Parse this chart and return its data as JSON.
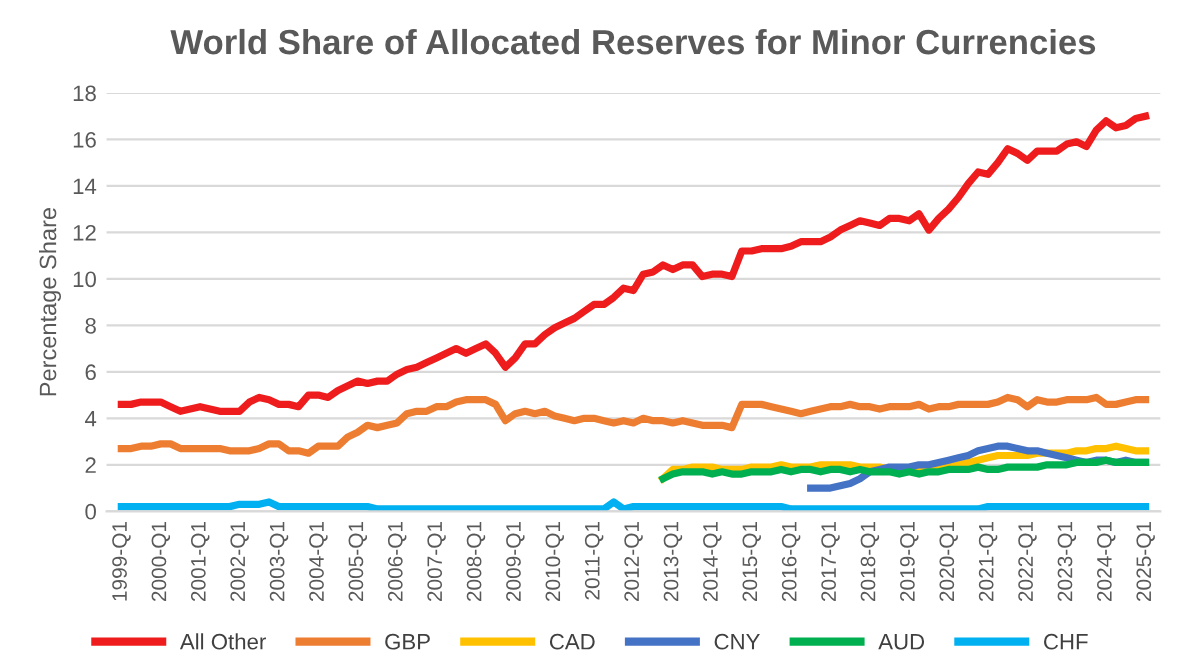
{
  "chart_data": {
    "type": "line",
    "title": "World Share of Allocated Reserves for Minor Currencies",
    "ylabel": "Percentage Share",
    "categories": [
      "1999-Q1",
      null,
      null,
      null,
      "2000-Q1",
      null,
      null,
      null,
      "2001-Q1",
      null,
      null,
      null,
      "2002-Q1",
      null,
      null,
      null,
      "2003-Q1",
      null,
      null,
      null,
      "2004-Q1",
      null,
      null,
      null,
      "2005-Q1",
      null,
      null,
      null,
      "2006-Q1",
      null,
      null,
      null,
      "2007-Q1",
      null,
      null,
      null,
      "2008-Q1",
      null,
      null,
      null,
      "2009-Q1",
      null,
      null,
      null,
      "2010-Q1",
      null,
      null,
      null,
      "2011-Q1",
      null,
      null,
      null,
      "2012-Q1",
      null,
      null,
      null,
      "2013-Q1",
      null,
      null,
      null,
      "2014-Q1",
      null,
      null,
      null,
      "2015-Q1",
      null,
      null,
      null,
      "2016-Q1",
      null,
      null,
      null,
      "2017-Q1",
      null,
      null,
      null,
      "2018-Q1",
      null,
      null,
      null,
      "2019-Q1",
      null,
      null,
      null,
      "2020-Q1",
      null,
      null,
      null,
      "2021-Q1",
      null,
      null,
      null,
      "2022-Q1",
      null,
      null,
      null,
      "2023-Q1",
      null,
      null,
      null,
      "2024-Q1",
      null,
      null,
      null,
      "2025-Q1"
    ],
    "series": [
      {
        "name": "All Other",
        "color": "#ee1c1c",
        "values": [
          4.6,
          4.6,
          4.7,
          4.7,
          4.7,
          4.5,
          4.3,
          4.4,
          4.5,
          4.4,
          4.3,
          4.3,
          4.3,
          4.7,
          4.9,
          4.8,
          4.6,
          4.6,
          4.5,
          5.0,
          5.0,
          4.9,
          5.2,
          5.4,
          5.6,
          5.5,
          5.6,
          5.6,
          5.9,
          6.1,
          6.2,
          6.4,
          6.6,
          6.8,
          7.0,
          6.8,
          7.0,
          7.2,
          6.8,
          6.2,
          6.6,
          7.2,
          7.2,
          7.6,
          7.9,
          8.1,
          8.3,
          8.6,
          8.9,
          8.9,
          9.2,
          9.6,
          9.5,
          10.2,
          10.3,
          10.6,
          10.4,
          10.6,
          10.6,
          10.1,
          10.2,
          10.2,
          10.1,
          11.2,
          11.2,
          11.3,
          11.3,
          11.3,
          11.4,
          11.6,
          11.6,
          11.6,
          11.8,
          12.1,
          12.3,
          12.5,
          12.4,
          12.3,
          12.6,
          12.6,
          12.5,
          12.8,
          12.1,
          12.6,
          13.0,
          13.5,
          14.1,
          14.6,
          14.5,
          15.0,
          15.6,
          15.4,
          15.1,
          15.5,
          15.5,
          15.5,
          15.8,
          15.9,
          15.7,
          16.4,
          16.8,
          16.5,
          16.6,
          16.9,
          17.0
        ]
      },
      {
        "name": "GBP",
        "color": "#ed7d31",
        "values": [
          2.7,
          2.7,
          2.8,
          2.8,
          2.9,
          2.9,
          2.7,
          2.7,
          2.7,
          2.7,
          2.7,
          2.6,
          2.6,
          2.6,
          2.7,
          2.9,
          2.9,
          2.6,
          2.6,
          2.5,
          2.8,
          2.8,
          2.8,
          3.2,
          3.4,
          3.7,
          3.6,
          3.7,
          3.8,
          4.2,
          4.3,
          4.3,
          4.5,
          4.5,
          4.7,
          4.8,
          4.8,
          4.8,
          4.6,
          3.9,
          4.2,
          4.3,
          4.2,
          4.3,
          4.1,
          4.0,
          3.9,
          4.0,
          4.0,
          3.9,
          3.8,
          3.9,
          3.8,
          4.0,
          3.9,
          3.9,
          3.8,
          3.9,
          3.8,
          3.7,
          3.7,
          3.7,
          3.6,
          4.6,
          4.6,
          4.6,
          4.5,
          4.4,
          4.3,
          4.2,
          4.3,
          4.4,
          4.5,
          4.5,
          4.6,
          4.5,
          4.5,
          4.4,
          4.5,
          4.5,
          4.5,
          4.6,
          4.4,
          4.5,
          4.5,
          4.6,
          4.6,
          4.6,
          4.6,
          4.7,
          4.9,
          4.8,
          4.5,
          4.8,
          4.7,
          4.7,
          4.8,
          4.8,
          4.8,
          4.9,
          4.6,
          4.6,
          4.7,
          4.8,
          4.8
        ]
      },
      {
        "name": "CAD",
        "color": "#ffc000",
        "values": [
          null,
          null,
          null,
          null,
          null,
          null,
          null,
          null,
          null,
          null,
          null,
          null,
          null,
          null,
          null,
          null,
          null,
          null,
          null,
          null,
          null,
          null,
          null,
          null,
          null,
          null,
          null,
          null,
          null,
          null,
          null,
          null,
          null,
          null,
          null,
          null,
          null,
          null,
          null,
          null,
          null,
          null,
          null,
          null,
          null,
          null,
          null,
          null,
          null,
          null,
          null,
          null,
          null,
          null,
          null,
          1.4,
          1.8,
          1.8,
          1.9,
          1.9,
          1.9,
          1.8,
          1.8,
          1.8,
          1.9,
          1.9,
          1.9,
          2.0,
          1.9,
          1.9,
          1.9,
          2.0,
          2.0,
          2.0,
          2.0,
          1.9,
          1.9,
          1.9,
          1.8,
          null,
          1.8,
          1.7,
          1.8,
          1.9,
          1.9,
          2.0,
          2.1,
          2.2,
          2.3,
          2.4,
          2.4,
          2.4,
          2.4,
          2.5,
          2.5,
          2.5,
          2.5,
          2.6,
          2.6,
          2.7,
          2.7,
          2.8,
          2.7,
          2.6,
          2.6
        ]
      },
      {
        "name": "CNY",
        "color": "#4472c4",
        "values": [
          null,
          null,
          null,
          null,
          null,
          null,
          null,
          null,
          null,
          null,
          null,
          null,
          null,
          null,
          null,
          null,
          null,
          null,
          null,
          null,
          null,
          null,
          null,
          null,
          null,
          null,
          null,
          null,
          null,
          null,
          null,
          null,
          null,
          null,
          null,
          null,
          null,
          null,
          null,
          null,
          null,
          null,
          null,
          null,
          null,
          null,
          null,
          null,
          null,
          null,
          null,
          null,
          null,
          null,
          null,
          null,
          null,
          null,
          null,
          null,
          null,
          null,
          null,
          null,
          null,
          null,
          null,
          null,
          null,
          null,
          1.0,
          1.0,
          1.0,
          1.1,
          1.2,
          1.4,
          1.7,
          1.8,
          1.9,
          1.9,
          1.9,
          2.0,
          2.0,
          2.1,
          2.2,
          2.3,
          2.4,
          2.6,
          2.7,
          2.8,
          2.8,
          2.7,
          2.6,
          2.6,
          2.5,
          2.4,
          2.3,
          2.2,
          2.1,
          2.2,
          2.2,
          2.1,
          2.2,
          2.1,
          2.1
        ]
      },
      {
        "name": "AUD",
        "color": "#00b050",
        "values": [
          null,
          null,
          null,
          null,
          null,
          null,
          null,
          null,
          null,
          null,
          null,
          null,
          null,
          null,
          null,
          null,
          null,
          null,
          null,
          null,
          null,
          null,
          null,
          null,
          null,
          null,
          null,
          null,
          null,
          null,
          null,
          null,
          null,
          null,
          null,
          null,
          null,
          null,
          null,
          null,
          null,
          null,
          null,
          null,
          null,
          null,
          null,
          null,
          null,
          null,
          null,
          null,
          null,
          null,
          null,
          1.4,
          1.6,
          1.7,
          1.7,
          1.7,
          1.6,
          1.7,
          1.6,
          1.6,
          1.7,
          1.7,
          1.7,
          1.8,
          1.7,
          1.8,
          1.8,
          1.7,
          1.8,
          1.8,
          1.7,
          1.8,
          1.7,
          1.7,
          1.7,
          1.6,
          1.7,
          1.6,
          1.7,
          1.7,
          1.8,
          1.8,
          1.8,
          1.9,
          1.8,
          1.8,
          1.9,
          1.9,
          1.9,
          1.9,
          2.0,
          2.0,
          2.0,
          2.1,
          2.1,
          2.1,
          2.2,
          2.1,
          2.1,
          2.1,
          2.1
        ]
      },
      {
        "name": "CHF",
        "color": "#00b0f0",
        "values": [
          0.2,
          0.2,
          0.2,
          0.2,
          0.2,
          0.2,
          0.2,
          0.2,
          0.2,
          0.2,
          0.2,
          0.2,
          0.3,
          0.3,
          0.3,
          0.4,
          0.2,
          0.2,
          0.2,
          0.2,
          0.2,
          0.2,
          0.2,
          0.2,
          0.2,
          0.2,
          0.1,
          0.1,
          0.1,
          0.1,
          0.1,
          0.1,
          0.1,
          0.1,
          0.1,
          0.1,
          0.1,
          0.1,
          0.1,
          0.1,
          0.1,
          0.1,
          0.1,
          0.1,
          0.1,
          0.1,
          0.1,
          0.1,
          0.1,
          0.1,
          0.4,
          0.1,
          0.2,
          0.2,
          0.2,
          0.2,
          0.2,
          0.2,
          0.2,
          0.2,
          0.2,
          0.2,
          0.2,
          0.2,
          0.2,
          0.2,
          0.2,
          0.2,
          0.1,
          0.1,
          0.1,
          0.1,
          0.1,
          0.1,
          0.1,
          0.1,
          0.1,
          0.1,
          0.1,
          0.1,
          0.1,
          0.1,
          0.1,
          0.1,
          0.1,
          0.1,
          0.1,
          0.1,
          0.2,
          0.2,
          0.2,
          0.2,
          0.2,
          0.2,
          0.2,
          0.2,
          0.2,
          0.2,
          0.2,
          0.2,
          0.2,
          0.2,
          0.2,
          0.2,
          0.2
        ]
      }
    ],
    "ylim": [
      0,
      18
    ],
    "yticks": [
      0,
      2,
      4,
      6,
      8,
      10,
      12,
      14,
      16,
      18
    ],
    "grid": "y",
    "legend": "bottom",
    "marker": "none",
    "line_style": "solid"
  }
}
